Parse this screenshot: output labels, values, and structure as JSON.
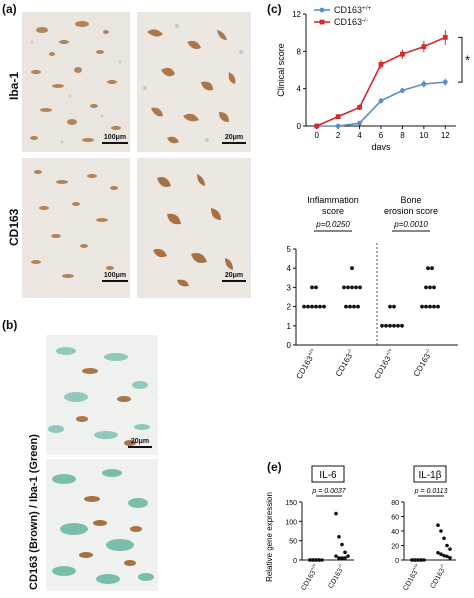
{
  "panels": {
    "a": {
      "label": "(a)",
      "row_labels": [
        "Iba-1",
        "CD163"
      ],
      "scale_bars": [
        "100μm",
        "20μm",
        "100μm",
        "20μm"
      ]
    },
    "b": {
      "label": "(b)",
      "side_label": "CD163 (Brown) / Iba-1 (Green)",
      "scale_bar": "20μm"
    },
    "c": {
      "label": "(c)"
    },
    "e": {
      "label": "(e)"
    }
  },
  "chart_data": [
    {
      "type": "line",
      "xlabel": "days",
      "ylabel": "Clinical score",
      "x": [
        0,
        2,
        4,
        6,
        8,
        10,
        12
      ],
      "xlim": [
        -1,
        13
      ],
      "ylim": [
        0,
        12
      ],
      "yticks": [
        0,
        4,
        8,
        12
      ],
      "legend_position": "top-left",
      "significance": "*",
      "series": [
        {
          "name": "CD163+/+",
          "color": "#5b8fc7",
          "values": [
            0,
            0,
            0.3,
            2.7,
            3.8,
            4.5,
            4.7
          ],
          "errors": [
            0,
            0,
            0.1,
            0.3,
            0.3,
            0.4,
            0.4
          ]
        },
        {
          "name": "CD163-/-",
          "color": "#d62a2a",
          "values": [
            0,
            1.0,
            2.0,
            6.6,
            7.7,
            8.5,
            9.5
          ],
          "errors": [
            0,
            0.2,
            0.3,
            0.5,
            0.5,
            0.6,
            0.8
          ]
        }
      ]
    },
    {
      "type": "scatter",
      "ylim": [
        0,
        5
      ],
      "yticks": [
        0,
        1,
        2,
        3,
        4,
        5
      ],
      "groups": [
        {
          "title": "Inflammation score",
          "p_text": "p=0.0250",
          "categories": [
            "CD163+/+",
            "CD163-/-"
          ],
          "points": [
            [
              2,
              2,
              2,
              2,
              2,
              2,
              3,
              3
            ],
            [
              2,
              2,
              2,
              2,
              3,
              3,
              3,
              3,
              3,
              4
            ]
          ]
        },
        {
          "title": "Bone erosion score",
          "p_text": "p=0.0010",
          "categories": [
            "CD163+/+",
            "CD163-/-"
          ],
          "points": [
            [
              1,
              1,
              1,
              1,
              1,
              1,
              2,
              2
            ],
            [
              2,
              2,
              2,
              2,
              2,
              3,
              3,
              3,
              4,
              4
            ]
          ]
        }
      ]
    },
    {
      "type": "scatter",
      "ylabel": "Relative gene expression",
      "groups": [
        {
          "title": "IL-6",
          "p_text": "p = 0.0037",
          "ylim": [
            0,
            150
          ],
          "yticks": [
            0,
            50,
            100,
            150
          ],
          "categories": [
            "CD163+/+",
            "CD163-/-"
          ],
          "points": [
            [
              0,
              0,
              0,
              0,
              0,
              0,
              0,
              0,
              0
            ],
            [
              120,
              60,
              40,
              20,
              10,
              10,
              5,
              5,
              5
            ]
          ]
        },
        {
          "title": "IL-1β",
          "p_text": "p = 0.0113",
          "ylim": [
            0,
            80
          ],
          "yticks": [
            0,
            20,
            40,
            60,
            80
          ],
          "categories": [
            "CD163+/+",
            "CD163-/-"
          ],
          "points": [
            [
              0,
              0,
              0,
              0,
              0,
              0,
              0,
              0,
              0
            ],
            [
              48,
              40,
              30,
              20,
              15,
              10,
              8,
              6,
              5,
              3
            ]
          ]
        }
      ]
    }
  ]
}
